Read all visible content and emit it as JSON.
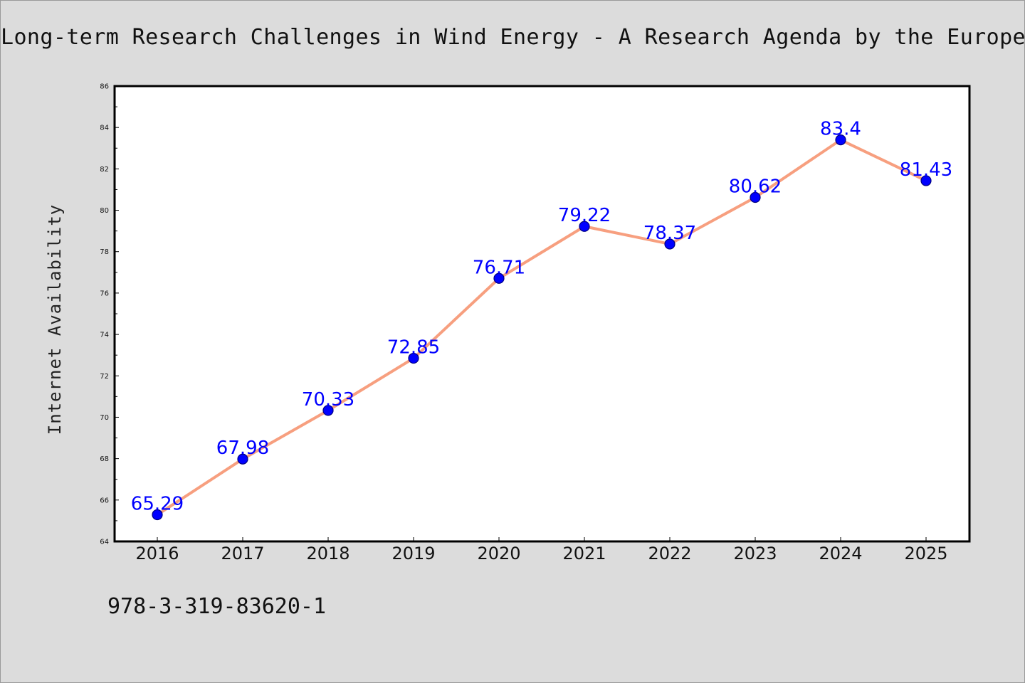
{
  "page": {
    "title": "Long-term Research Challenges in Wind Energy - A Research Agenda by the European",
    "isbn": "978-3-319-83620-1"
  },
  "colors": {
    "background": "#dcdcdc",
    "plot_background": "#ffffff",
    "line": "#f79f7f",
    "marker_fill": "#0000ff",
    "marker_edge": "#000080",
    "data_label": "#0000ff"
  },
  "chart_data": {
    "type": "line",
    "title": "Long-term Research Challenges in Wind Energy - A Research Agenda by the European",
    "xlabel": "",
    "ylabel": "Internet Availability",
    "categories": [
      "2016",
      "2017",
      "2018",
      "2019",
      "2020",
      "2021",
      "2022",
      "2023",
      "2024",
      "2025"
    ],
    "series": [
      {
        "values": [
          65.29,
          67.98,
          70.33,
          72.85,
          76.71,
          79.22,
          78.37,
          80.62,
          83.4,
          81.43
        ],
        "labels": [
          "65.29",
          "67.98",
          "70.33",
          "72.85",
          "76.71",
          "79.22",
          "78.37",
          "80.62",
          "83.4",
          "81.43"
        ],
        "color": "#f79f7f",
        "marker": "circle"
      }
    ],
    "ylim": [
      64,
      86
    ],
    "yticks": [
      "64",
      "66",
      "68",
      "70",
      "72",
      "74",
      "76",
      "78",
      "80",
      "82",
      "84",
      "86"
    ],
    "grid": false,
    "legend": "none"
  }
}
